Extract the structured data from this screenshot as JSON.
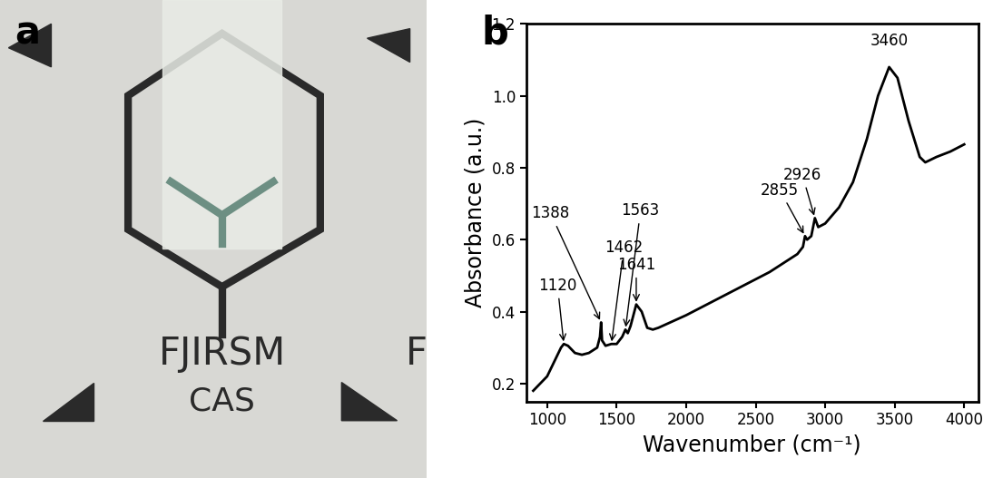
{
  "photo": {
    "panel_label": "a",
    "texts": [
      "FJIRSM",
      "CAS"
    ],
    "edge_text": "F"
  },
  "chart_data": {
    "type": "line",
    "panel_label": "b",
    "x_label": "Wavenumber (cm⁻¹)",
    "y_label": "Absorbance (a.u.)",
    "color": "#000000",
    "x": [
      900,
      950,
      1000,
      1050,
      1100,
      1120,
      1150,
      1200,
      1250,
      1300,
      1360,
      1380,
      1388,
      1395,
      1420,
      1462,
      1500,
      1540,
      1563,
      1580,
      1600,
      1641,
      1680,
      1720,
      1760,
      1800,
      2000,
      2200,
      2400,
      2600,
      2800,
      2840,
      2855,
      2870,
      2900,
      2926,
      2950,
      3000,
      3100,
      3200,
      3300,
      3380,
      3460,
      3520,
      3600,
      3680,
      3720,
      3800,
      3900,
      4000
    ],
    "values": [
      0.18,
      0.2,
      0.22,
      0.26,
      0.3,
      0.31,
      0.305,
      0.285,
      0.28,
      0.285,
      0.3,
      0.33,
      0.37,
      0.32,
      0.305,
      0.31,
      0.31,
      0.33,
      0.35,
      0.34,
      0.36,
      0.42,
      0.4,
      0.355,
      0.35,
      0.355,
      0.39,
      0.43,
      0.47,
      0.51,
      0.56,
      0.58,
      0.61,
      0.6,
      0.61,
      0.66,
      0.635,
      0.645,
      0.69,
      0.76,
      0.88,
      1.0,
      1.08,
      1.05,
      0.93,
      0.83,
      0.815,
      0.83,
      0.845,
      0.865
    ],
    "annotations": [
      {
        "text": "1120",
        "x": 1120,
        "y": 0.31
      },
      {
        "text": "1388",
        "x": 1388,
        "y": 0.37
      },
      {
        "text": "1462",
        "x": 1462,
        "y": 0.31
      },
      {
        "text": "1563",
        "x": 1563,
        "y": 0.35
      },
      {
        "text": "1641",
        "x": 1641,
        "y": 0.42
      },
      {
        "text": "2855",
        "x": 2855,
        "y": 0.61
      },
      {
        "text": "2926",
        "x": 2926,
        "y": 0.66
      },
      {
        "text": "3460",
        "x": 3460,
        "y": 1.08
      }
    ],
    "xlim": [
      850,
      4100
    ],
    "xticks": [
      1000,
      1500,
      2000,
      2500,
      3000,
      3500,
      4000
    ],
    "ylim": [
      0.15,
      1.2
    ],
    "yticks": [
      0.2,
      0.4,
      0.6,
      0.8,
      1.0,
      1.2
    ]
  }
}
